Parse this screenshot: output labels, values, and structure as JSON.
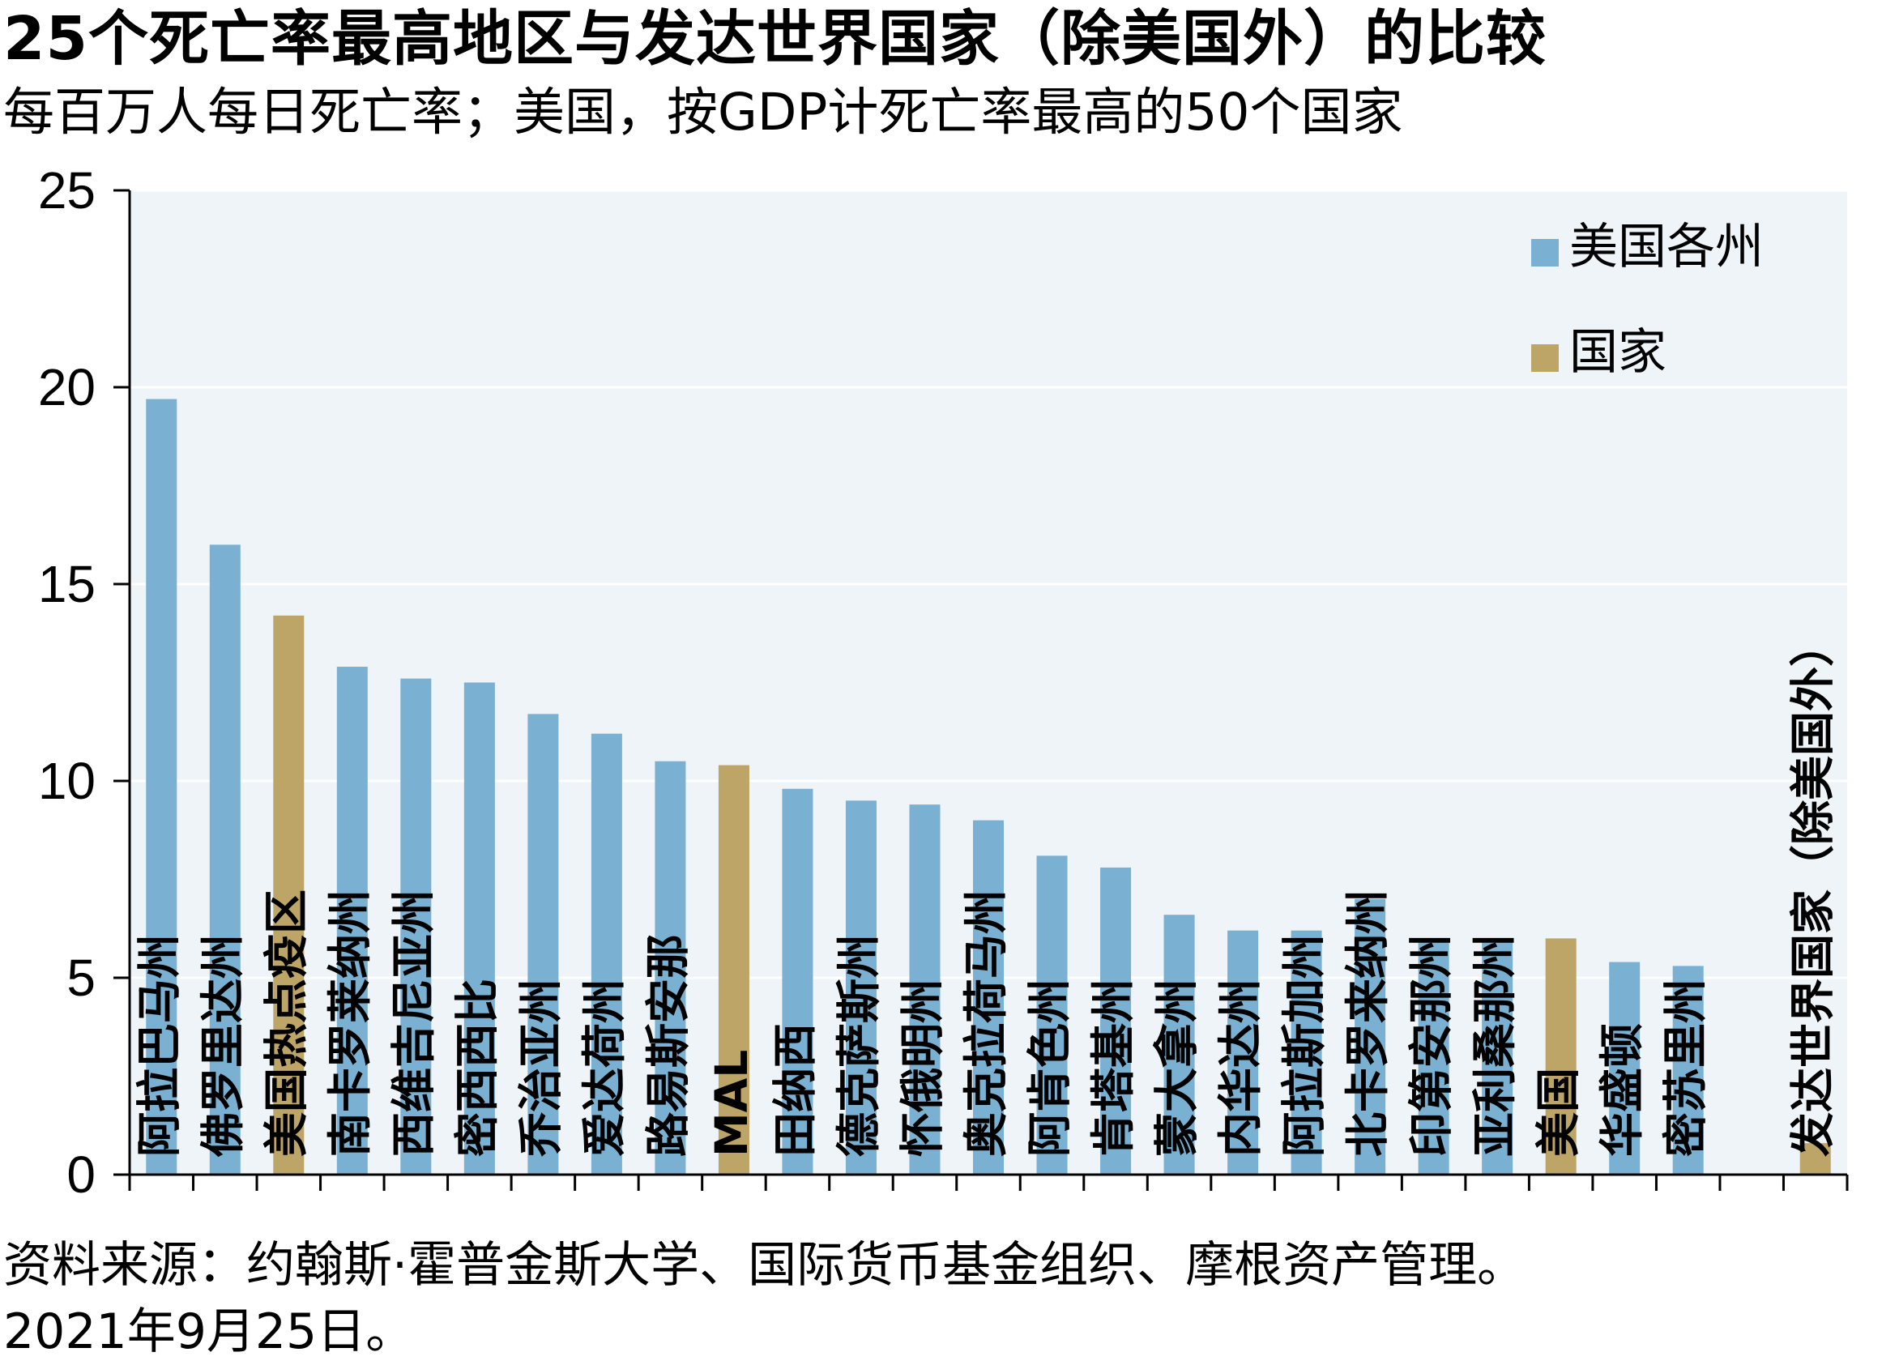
{
  "title": "25个死亡率最高地区与发达世界国家（除美国外）的比较",
  "subtitle": "每百万人每日死亡率；美国，按GDP计死亡率最高的50个国家",
  "source": "资料来源：约翰斯·霍普金斯大学、国际货币基金组织、摩根资产管理。",
  "date": "2021年9月25日。",
  "colors": {
    "state": "#7AB0D2",
    "country": "#BDA467",
    "plot_bg": "#EEF4F7",
    "gridline": "#FFFFFF"
  },
  "chart_data": {
    "type": "bar",
    "ylim": [
      0,
      25
    ],
    "yticks": [
      0,
      5,
      10,
      15,
      20,
      25
    ],
    "grid": true,
    "legend_position": "top-right",
    "legend": [
      {
        "key": "state",
        "label": "美国各州"
      },
      {
        "key": "country",
        "label": "国家"
      }
    ],
    "categories": [
      "阿拉巴马州",
      "佛罗里达州",
      "美国热点疫区",
      "南卡罗莱纳州",
      "西维吉尼亚州",
      "密西西比",
      "乔治亚州",
      "爱达荷州",
      "路易斯安那",
      "MAL",
      "田纳西",
      "德克萨斯州",
      "怀俄明州",
      "奥克拉荷马州",
      "阿肯色州",
      "肯塔基州",
      "蒙大拿州",
      "内华达州",
      "阿拉斯加州",
      "北卡罗来纳州",
      "印第安那州",
      "亚利桑那州",
      "美国",
      "华盛顿",
      "密苏里州",
      "",
      "发达世界国家（除美国外）"
    ],
    "groups": [
      "state",
      "state",
      "country",
      "state",
      "state",
      "state",
      "state",
      "state",
      "state",
      "country",
      "state",
      "state",
      "state",
      "state",
      "state",
      "state",
      "state",
      "state",
      "state",
      "state",
      "state",
      "state",
      "country",
      "state",
      "state",
      "",
      "country"
    ],
    "values": [
      19.7,
      16.0,
      14.2,
      12.9,
      12.6,
      12.5,
      11.7,
      11.2,
      10.5,
      10.4,
      9.8,
      9.5,
      9.4,
      9.0,
      8.1,
      7.8,
      6.6,
      6.2,
      6.2,
      7.0,
      6.0,
      5.9,
      6.0,
      5.4,
      5.3,
      null,
      0.8
    ]
  }
}
